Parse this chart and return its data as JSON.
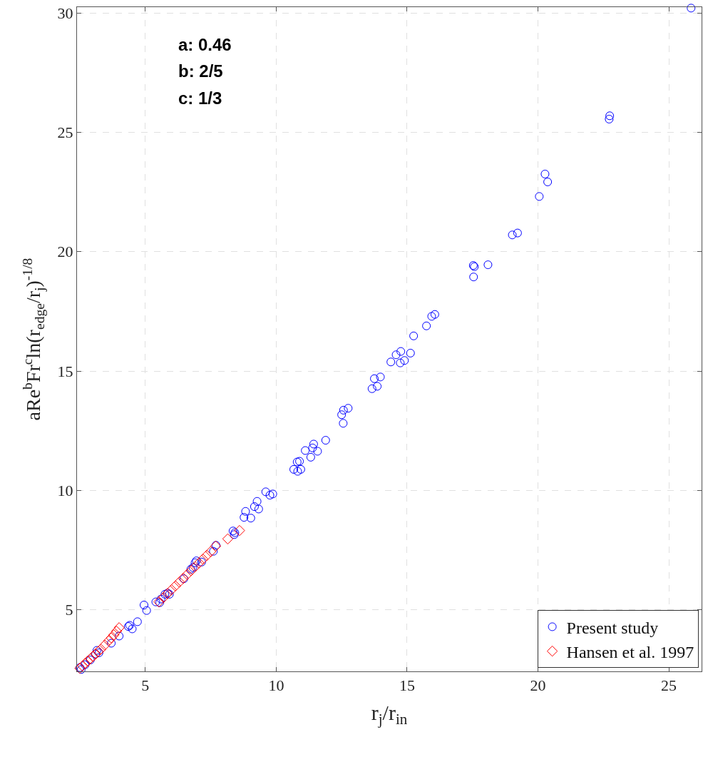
{
  "chart_data": {
    "type": "scatter",
    "xlabel": "r$_{j}$/r$_{in}$",
    "ylabel": "aRe$^{b}$Fr$^{c}$ln(r$_{edge}$/r$_{j}$)$^{-1/8}$",
    "annotations": [
      "a: 0.46",
      "b: 2/5",
      "c: 1/3"
    ],
    "xlim": [
      2.39,
      26.25
    ],
    "ylim": [
      2.42,
      30.24
    ],
    "xticks": [
      5,
      10,
      15,
      20,
      25
    ],
    "yticks": [
      5,
      10,
      15,
      20,
      25,
      30
    ],
    "grid": true,
    "legend": "bottom right",
    "line_style": "dashed",
    "series": [
      {
        "name": "Present study",
        "color": "#0000ff",
        "marker": "circle",
        "x": [
          2.5,
          2.55,
          2.7,
          2.9,
          3.1,
          3.15,
          3.23,
          3.7,
          4.0,
          4.35,
          4.4,
          4.5,
          4.7,
          4.95,
          5.05,
          5.4,
          5.55,
          5.6,
          5.75,
          5.85,
          5.92,
          6.47,
          6.74,
          6.82,
          6.9,
          6.95,
          7.15,
          7.6,
          7.7,
          8.35,
          8.42,
          8.4,
          8.77,
          8.83,
          9.03,
          9.17,
          9.27,
          9.33,
          9.6,
          9.76,
          9.87,
          10.67,
          10.82,
          10.94,
          10.8,
          10.89,
          11.11,
          11.32,
          11.39,
          11.43,
          11.58,
          11.89,
          12.56,
          12.5,
          12.57,
          12.75,
          13.66,
          13.86,
          13.75,
          13.98,
          14.38,
          14.74,
          14.9,
          14.58,
          14.76,
          15.13,
          15.25,
          15.74,
          15.94,
          16.06,
          17.53,
          17.57,
          17.54,
          18.09,
          19.02,
          19.22,
          20.05,
          20.27,
          20.37,
          22.72,
          22.74,
          25.85
        ],
        "values": [
          2.58,
          2.5,
          2.7,
          2.9,
          3.15,
          3.3,
          3.2,
          3.6,
          3.9,
          4.3,
          4.35,
          4.2,
          4.5,
          5.2,
          4.97,
          5.33,
          5.3,
          5.45,
          5.65,
          5.7,
          5.65,
          6.3,
          6.7,
          6.77,
          6.97,
          7.05,
          7.0,
          7.45,
          7.7,
          8.3,
          8.23,
          8.15,
          8.87,
          9.12,
          8.84,
          9.32,
          9.54,
          9.22,
          9.94,
          9.8,
          9.85,
          10.88,
          10.8,
          10.88,
          11.19,
          11.22,
          11.67,
          11.39,
          11.78,
          11.94,
          11.64,
          12.1,
          12.81,
          13.17,
          13.36,
          13.44,
          14.26,
          14.36,
          14.68,
          14.75,
          15.38,
          15.34,
          15.44,
          15.68,
          15.82,
          15.75,
          16.47,
          16.89,
          17.29,
          17.37,
          19.42,
          19.37,
          18.94,
          19.45,
          20.7,
          20.78,
          22.31,
          23.25,
          22.92,
          25.55,
          25.69,
          30.2
        ]
      },
      {
        "name": "Hansen et al. 1997",
        "color": "#ff0000",
        "marker": "diamond",
        "x": [
          2.5,
          2.6,
          2.7,
          2.8,
          2.9,
          3.0,
          3.1,
          3.2,
          3.3,
          3.45,
          3.6,
          3.7,
          3.8,
          3.9,
          4.0,
          5.52,
          5.7,
          5.85,
          6.0,
          6.15,
          6.3,
          6.45,
          6.6,
          6.75,
          6.9,
          7.05,
          7.2,
          7.35,
          7.5,
          7.69,
          8.15,
          8.6
        ],
        "values": [
          2.55,
          2.65,
          2.75,
          2.85,
          2.95,
          3.05,
          3.15,
          3.25,
          3.35,
          3.52,
          3.7,
          3.82,
          3.95,
          4.1,
          4.25,
          5.33,
          5.52,
          5.68,
          5.84,
          6.0,
          6.16,
          6.32,
          6.48,
          6.64,
          6.8,
          6.96,
          7.12,
          7.28,
          7.44,
          7.67,
          7.97,
          8.32
        ]
      }
    ]
  }
}
